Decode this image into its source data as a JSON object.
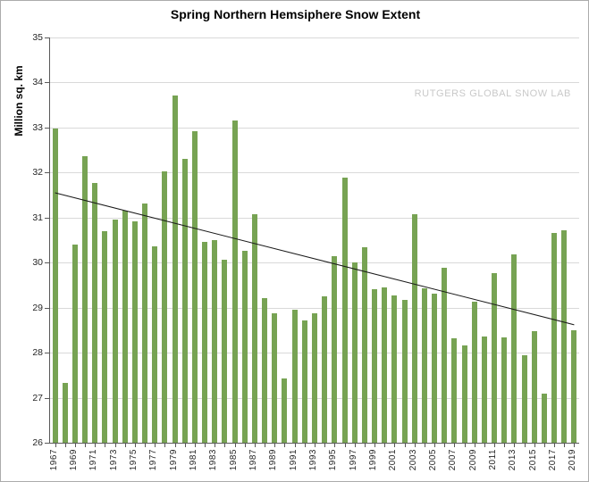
{
  "chart_data": {
    "type": "bar",
    "title": "Spring Northern Hemsiphere Snow Extent",
    "watermark": "RUTGERS GLOBAL SNOW LAB",
    "ylabel": "Million sq. km",
    "ylim": [
      26,
      35
    ],
    "ytick_step": 1,
    "grid": true,
    "legend": false,
    "xtick_label_every": 2,
    "categories": [
      "1967",
      "1968",
      "1969",
      "1970",
      "1971",
      "1972",
      "1973",
      "1974",
      "1975",
      "1976",
      "1977",
      "1978",
      "1979",
      "1980",
      "1981",
      "1982",
      "1983",
      "1984",
      "1985",
      "1986",
      "1987",
      "1988",
      "1989",
      "1990",
      "1991",
      "1992",
      "1993",
      "1994",
      "1995",
      "1996",
      "1997",
      "1998",
      "1999",
      "2000",
      "2001",
      "2002",
      "2003",
      "2004",
      "2005",
      "2006",
      "2007",
      "2008",
      "2009",
      "2010",
      "2011",
      "2012",
      "2013",
      "2014",
      "2015",
      "2016",
      "2017",
      "2018",
      "2019"
    ],
    "values": [
      32.97,
      27.33,
      30.4,
      32.37,
      31.76,
      30.7,
      30.95,
      31.16,
      30.92,
      31.32,
      30.37,
      32.02,
      33.71,
      32.3,
      32.92,
      30.46,
      30.5,
      30.07,
      33.16,
      30.26,
      31.08,
      29.22,
      28.87,
      27.43,
      28.96,
      28.72,
      28.88,
      29.25,
      30.15,
      31.89,
      30.0,
      30.34,
      29.4,
      29.45,
      29.28,
      29.18,
      31.08,
      29.43,
      29.31,
      29.88,
      28.32,
      28.17,
      29.13,
      28.35,
      29.77,
      28.34,
      30.18,
      27.95,
      28.47,
      27.1,
      30.66,
      30.72,
      28.5
    ],
    "trend_line": {
      "start_category": "1967",
      "end_category": "2019",
      "start_value": 31.55,
      "end_value": 28.62,
      "color": "#1a1a1a"
    },
    "colors": {
      "bar": "#77A353",
      "grid": "#d9d9d9",
      "axis": "#595959",
      "tick_label": "#262626",
      "watermark": "#c9c9c9",
      "background": "#ffffff"
    }
  }
}
